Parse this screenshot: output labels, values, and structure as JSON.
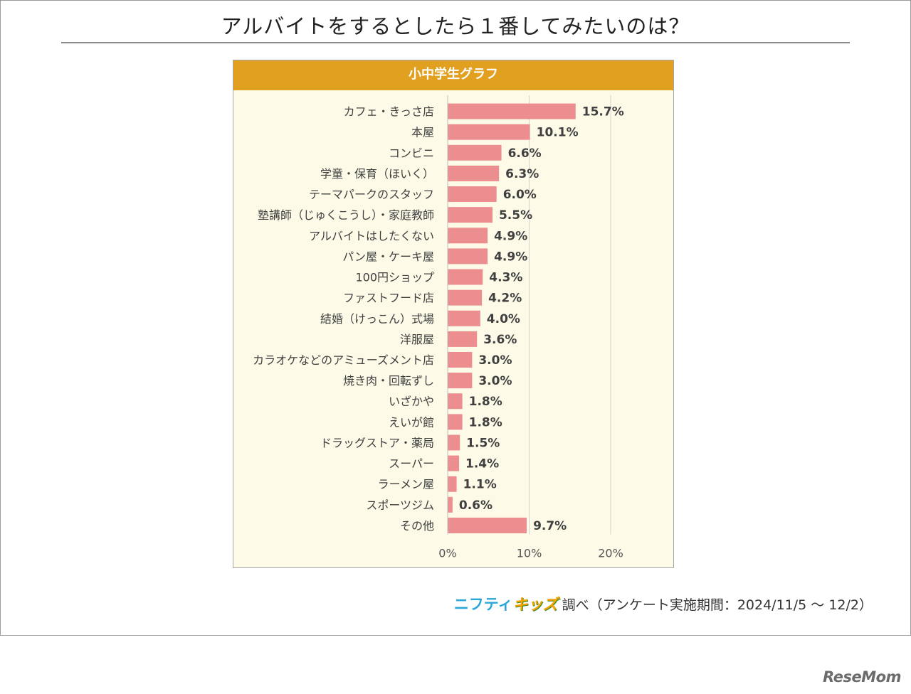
{
  "page": {
    "title": "アルバイトをするとしたら１番してみたいのは？",
    "source_logo_a": "ニフティ",
    "source_logo_b": "キッズ",
    "source_text": "調べ（アンケート実施期間：2024/11/5 ～ 12/2）",
    "watermark": "ReseMom"
  },
  "chart_data": {
    "type": "bar",
    "orientation": "horizontal",
    "title": "小中学生グラフ",
    "categories": [
      "カフェ・きっさ店",
      "本屋",
      "コンビニ",
      "学童・保育（ほいく）",
      "テーマパークのスタッフ",
      "塾講師（じゅくこうし）・家庭教師",
      "アルバイトはしたくない",
      "パン屋・ケーキ屋",
      "100円ショップ",
      "ファストフード店",
      "結婚（けっこん）式場",
      "洋服屋",
      "カラオケなどのアミューズメント店",
      "焼き肉・回転ずし",
      "いざかや",
      "えいが館",
      "ドラッグストア・薬局",
      "スーパー",
      "ラーメン屋",
      "スポーツジム",
      "その他"
    ],
    "values": [
      15.7,
      10.1,
      6.6,
      6.3,
      6.0,
      5.5,
      4.9,
      4.9,
      4.3,
      4.2,
      4.0,
      3.6,
      3.0,
      3.0,
      1.8,
      1.8,
      1.5,
      1.4,
      1.1,
      0.6,
      9.7
    ],
    "value_labels": [
      "15.7%",
      "10.1%",
      "6.6%",
      "6.3%",
      "6.0%",
      "5.5%",
      "4.9%",
      "4.9%",
      "4.3%",
      "4.2%",
      "4.0%",
      "3.6%",
      "3.0%",
      "3.0%",
      "1.8%",
      "1.8%",
      "1.5%",
      "1.4%",
      "1.1%",
      "0.6%",
      "9.7%"
    ],
    "xlim": [
      0,
      20
    ],
    "x_ticks": [
      0,
      10,
      20
    ],
    "x_tick_labels": [
      "0%",
      "10%",
      "20%"
    ],
    "grid": "vertical",
    "colors": {
      "bar": "#ec8d8f",
      "header": "#e2a021",
      "panel_bg": "#fdfbe8",
      "grid": "#d2d2d2"
    }
  }
}
